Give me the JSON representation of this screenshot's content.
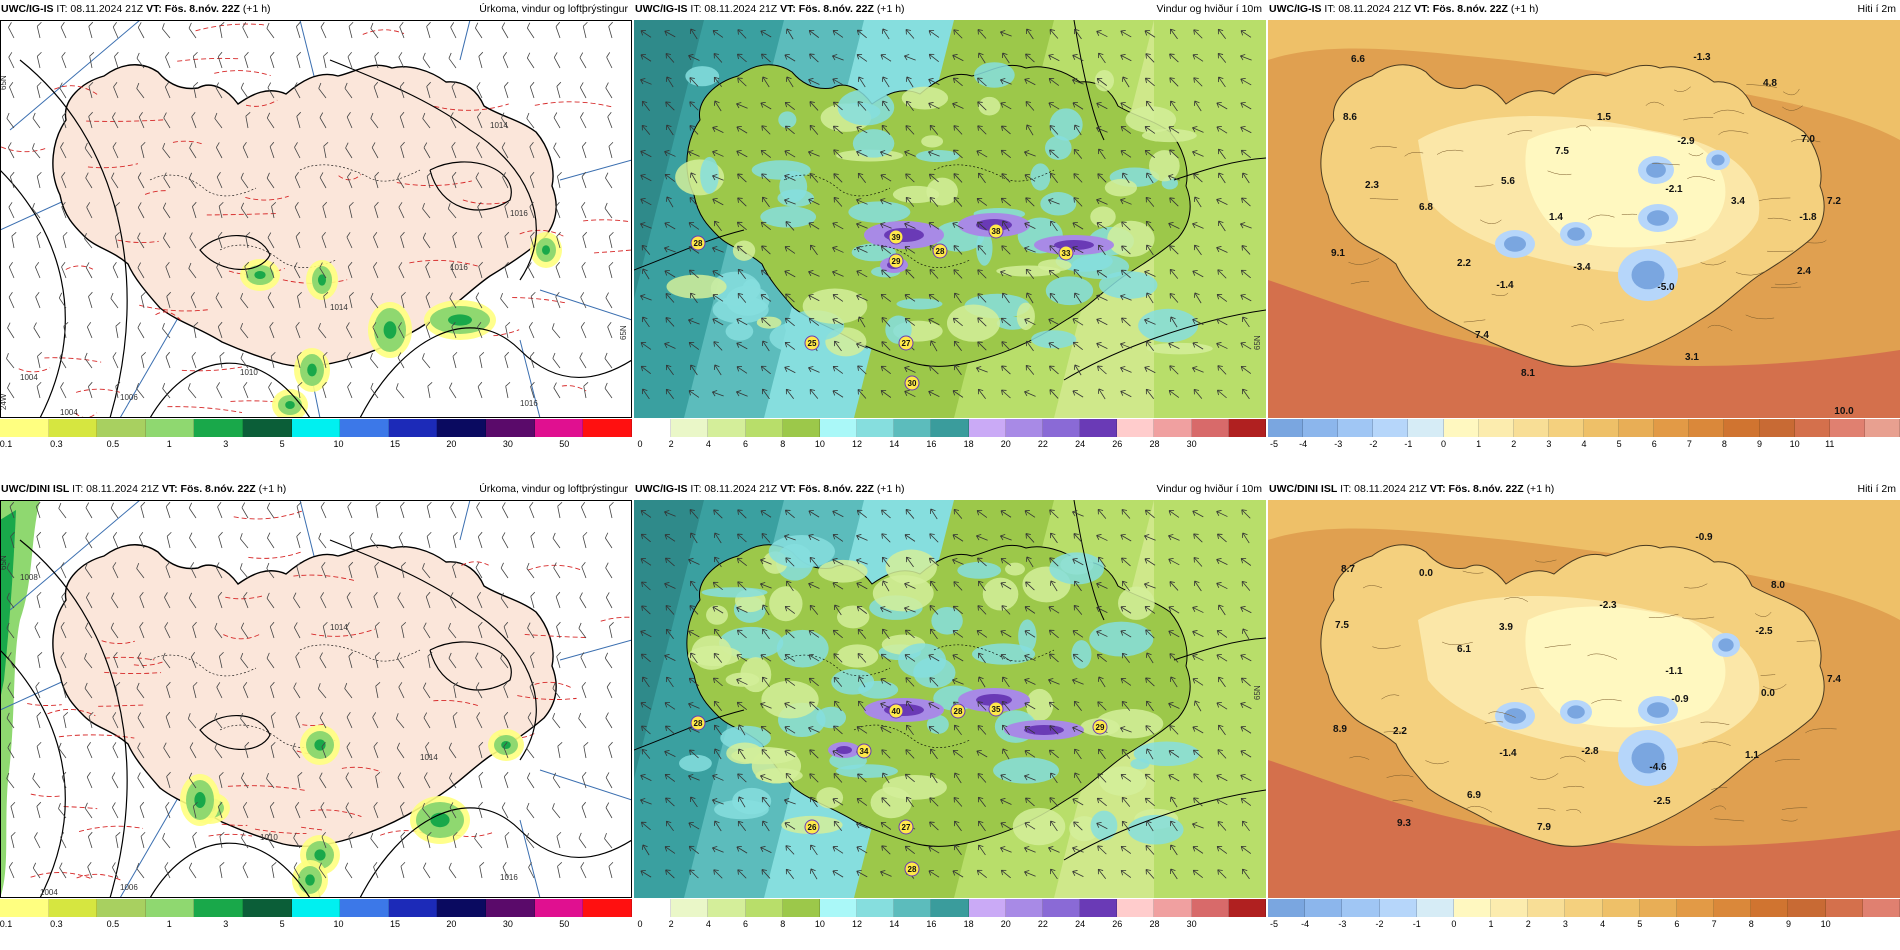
{
  "rows": [
    {
      "panels": [
        {
          "kind": "precip",
          "source": "UWC/IG-IS",
          "it": "IT: 08.11.2024 21Z",
          "vt": "VT: Fös. 8.nóv. 22Z",
          "lead": "(+1 h)",
          "title": "Úrkoma, vindur og loftþrýstingur",
          "scale": {
            "colors": [
              "#ffff80",
              "#d6e640",
              "#a8d060",
              "#8fd870",
              "#19a84a",
              "#0b5e38",
              "#00f0f0",
              "#3c78e8",
              "#1c2ab8",
              "#0a0a60",
              "#5a0a6a",
              "#e01090",
              "#ff1010"
            ],
            "ticks": [
              "0.1",
              "0.3",
              "0.5",
              "1",
              "3",
              "5",
              "10",
              "15",
              "20",
              "30",
              "50"
            ]
          },
          "pressure_labels": [
            "1014",
            "1016",
            "1010",
            "1006",
            "1004",
            "1004",
            "1016",
            "1016",
            "1014"
          ],
          "grid_labels": [
            "65N",
            "65N",
            "24W"
          ]
        },
        {
          "kind": "wind",
          "source": "UWC/IG-IS",
          "it": "IT: 08.11.2024 21Z",
          "vt": "VT: Fös. 8.nóv. 22Z",
          "lead": "(+1 h)",
          "title": "Vindur og hviður í 10m",
          "scale": {
            "colors": [
              "#ffffff",
              "#eaf7c8",
              "#d4ee9a",
              "#b8de6a",
              "#9cc84a",
              "#aaf8f8",
              "#86dede",
              "#5cbcbc",
              "#3a9c9c",
              "#caaaf6",
              "#a88ae6",
              "#8a6ad6",
              "#6a3ab6",
              "#ffcccc",
              "#f0a0a0",
              "#d86a6a",
              "#b02020"
            ],
            "ticks": [
              "0",
              "2",
              "4",
              "6",
              "8",
              "10",
              "12",
              "14",
              "16",
              "18",
              "20",
              "22",
              "24",
              "26",
              "28",
              "30"
            ]
          },
          "gusts": [
            "28",
            "39",
            "38",
            "29",
            "28",
            "33",
            "25",
            "27",
            "30"
          ],
          "grid_labels": [
            "65N"
          ]
        },
        {
          "kind": "temp",
          "source": "UWC/IG-IS",
          "it": "IT: 08.11.2024 21Z",
          "vt": "VT: Fös. 8.nóv. 22Z",
          "lead": "(+1 h)",
          "title": "Hiti í 2m",
          "scale": {
            "colors": [
              "#7aa6e0",
              "#8cb6ec",
              "#a0c6f4",
              "#b6d6fa",
              "#d6ecf6",
              "#fff8c0",
              "#fcecae",
              "#f8de96",
              "#f4d07e",
              "#eec068",
              "#e8ae56",
              "#e29a46",
              "#da883a",
              "#d07430",
              "#c86a34",
              "#d4704c",
              "#e08070",
              "#e8a090"
            ],
            "ticks": [
              "-5",
              "-4",
              "-3",
              "-2",
              "-1",
              "0",
              "1",
              "2",
              "3",
              "4",
              "5",
              "6",
              "7",
              "8",
              "9",
              "10",
              "11"
            ]
          },
          "temps": [
            "6.6",
            "-1.3",
            "4.8",
            "8.6",
            "1.5",
            "7.0",
            "7.5",
            "-2.9",
            "2.3",
            "5.6",
            "-2.1",
            "3.4",
            "7.2",
            "6.8",
            "1.4",
            "-1.8",
            "9.1",
            "2.2",
            "-3.4",
            "-1.4",
            "-5.0",
            "2.4",
            "7.4",
            "3.1",
            "8.1",
            "10.0"
          ]
        }
      ]
    },
    {
      "panels": [
        {
          "kind": "precip",
          "source": "UWC/DINI ISL",
          "it": "IT: 08.11.2024 21Z",
          "vt": "VT: Fös. 8.nóv. 22Z",
          "lead": "(+1 h)",
          "title": "Úrkoma, vindur og loftþrýstingur",
          "scale": {
            "colors": [
              "#ffff80",
              "#d6e640",
              "#a8d060",
              "#8fd870",
              "#19a84a",
              "#0b5e38",
              "#00f0f0",
              "#3c78e8",
              "#1c2ab8",
              "#0a0a60",
              "#5a0a6a",
              "#e01090",
              "#ff1010"
            ],
            "ticks": [
              "0.1",
              "0.3",
              "0.5",
              "1",
              "3",
              "5",
              "10",
              "15",
              "20",
              "30",
              "50"
            ]
          },
          "pressure_labels": [
            "1008",
            "1014",
            "1006",
            "1004",
            "1016",
            "1010",
            "1014"
          ],
          "grid_labels": [
            "65N"
          ]
        },
        {
          "kind": "wind",
          "source": "UWC/IG-IS",
          "it": "IT: 08.11.2024 21Z",
          "vt": "VT: Fös. 8.nóv. 22Z",
          "lead": "(+1 h)",
          "title": "Vindur og hviður í 10m",
          "scale": {
            "colors": [
              "#ffffff",
              "#eaf7c8",
              "#d4ee9a",
              "#b8de6a",
              "#9cc84a",
              "#aaf8f8",
              "#86dede",
              "#5cbcbc",
              "#3a9c9c",
              "#caaaf6",
              "#a88ae6",
              "#8a6ad6",
              "#6a3ab6",
              "#ffcccc",
              "#f0a0a0",
              "#d86a6a",
              "#b02020"
            ],
            "ticks": [
              "0",
              "2",
              "4",
              "6",
              "8",
              "10",
              "12",
              "14",
              "16",
              "18",
              "20",
              "22",
              "24",
              "26",
              "28",
              "30"
            ]
          },
          "gusts": [
            "28",
            "40",
            "35",
            "34",
            "28",
            "29",
            "26",
            "27",
            "28"
          ],
          "grid_labels": [
            "65N"
          ]
        },
        {
          "kind": "temp",
          "source": "UWC/DINI ISL",
          "it": "IT: 08.11.2024 21Z",
          "vt": "VT: Fös. 8.nóv. 22Z",
          "lead": "(+1 h)",
          "title": "Hiti í 2m",
          "scale": {
            "colors": [
              "#7aa6e0",
              "#8cb6ec",
              "#a0c6f4",
              "#b6d6fa",
              "#d6ecf6",
              "#fff8c0",
              "#fcecae",
              "#f8de96",
              "#f4d07e",
              "#eec068",
              "#e8ae56",
              "#e29a46",
              "#da883a",
              "#d07430",
              "#c86a34",
              "#d4704c",
              "#e08070"
            ],
            "ticks": [
              "-5",
              "-4",
              "-3",
              "-2",
              "-1",
              "0",
              "1",
              "2",
              "3",
              "4",
              "5",
              "6",
              "7",
              "8",
              "9",
              "10"
            ]
          },
          "temps": [
            "-0.9",
            "8.7",
            "0.0",
            "-2.3",
            "8.0",
            "7.5",
            "3.9",
            "-2.5",
            "6.1",
            "-1.1",
            "7.4",
            "0.0",
            "-0.9",
            "8.9",
            "2.2",
            "-1.4",
            "-2.8",
            "-4.6",
            "1.1",
            "6.9",
            "-2.5",
            "9.3",
            "7.9"
          ]
        }
      ]
    }
  ]
}
